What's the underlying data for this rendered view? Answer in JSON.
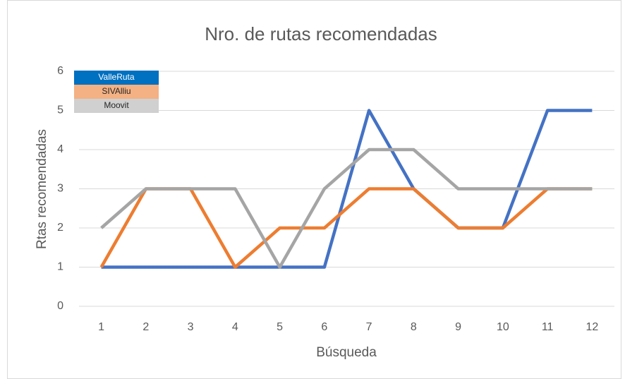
{
  "chart_data": {
    "type": "line",
    "title": "Nro. de rutas recomendadas",
    "x_label": "Búsqueda",
    "y_label": "Rtas recomendadas",
    "categories": [
      "1",
      "2",
      "3",
      "4",
      "5",
      "6",
      "7",
      "8",
      "9",
      "10",
      "11",
      "12"
    ],
    "series": [
      {
        "name": "ValleRuta",
        "color": "#4472c4",
        "legend_color": "#0070c0",
        "values": [
          1,
          1,
          1,
          1,
          1,
          1,
          5,
          3,
          2,
          2,
          5,
          5
        ]
      },
      {
        "name": "SIVAlliu",
        "color": "#ed7d31",
        "legend_color": "#f4b183",
        "values": [
          1,
          3,
          3,
          1,
          2,
          2,
          3,
          3,
          2,
          2,
          3,
          3
        ]
      },
      {
        "name": "Moovit",
        "color": "#a5a5a5",
        "legend_color": "#d0d0d0",
        "values": [
          2,
          3,
          3,
          3,
          1,
          3,
          4,
          4,
          3,
          3,
          3,
          3
        ]
      }
    ],
    "ylim": [
      0,
      6
    ],
    "yticks": [
      0,
      1,
      2,
      3,
      4,
      5,
      6
    ],
    "grid": true,
    "legend": "top-left"
  }
}
